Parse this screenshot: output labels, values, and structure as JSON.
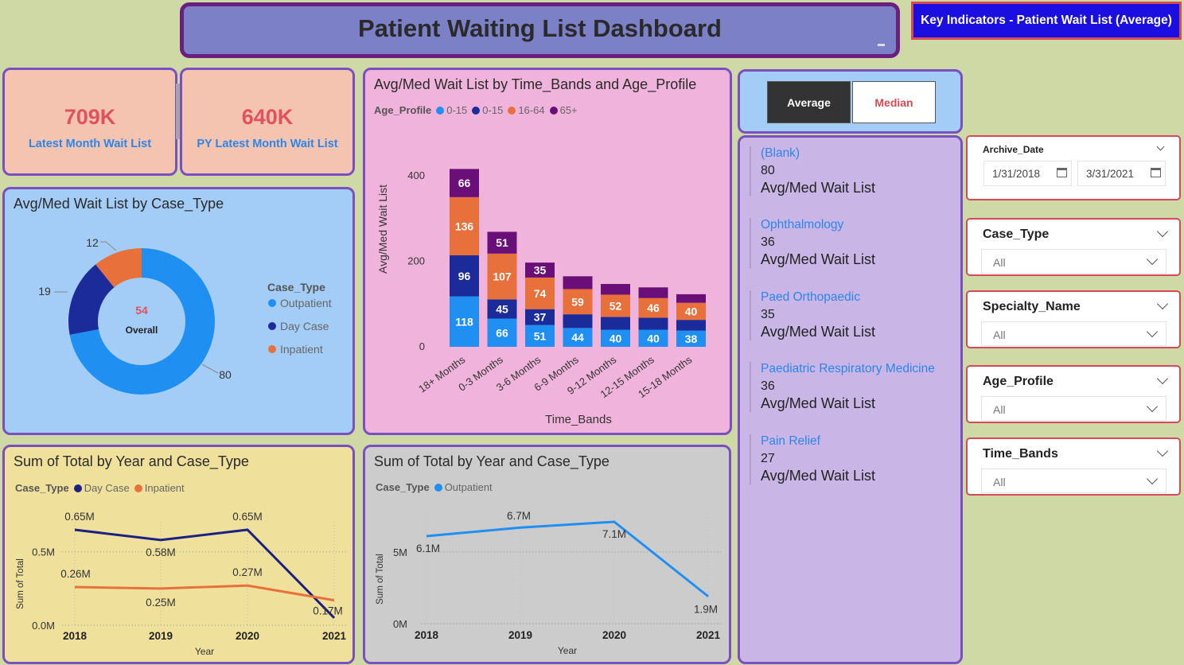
{
  "header": {
    "title": "Patient Waiting List Dashboard",
    "key_indicators": "Key Indicators - Patient Wait List (Average)"
  },
  "kpis": [
    {
      "value": "709K",
      "label": "Latest Month Wait List"
    },
    {
      "value": "640K",
      "label": "PY Latest Month Wait List"
    }
  ],
  "toggle": {
    "average": "Average",
    "median": "Median",
    "selected": "Average"
  },
  "cards": [
    {
      "name": "(Blank)",
      "value": "80",
      "measure": "Avg/Med Wait List"
    },
    {
      "name": "Ophthalmology",
      "value": "36",
      "measure": "Avg/Med Wait List"
    },
    {
      "name": "Paed Orthopaedic",
      "value": "35",
      "measure": "Avg/Med Wait List"
    },
    {
      "name": "Paediatric Respiratory Medicine",
      "value": "36",
      "measure": "Avg/Med Wait List"
    },
    {
      "name": "Pain Relief",
      "value": "27",
      "measure": "Avg/Med Wait List"
    }
  ],
  "slicers": {
    "archive_date": {
      "title": "Archive_Date",
      "start": "1/31/2018",
      "end": "3/31/2021"
    },
    "case_type": {
      "title": "Case_Type",
      "value": "All"
    },
    "specialty": {
      "title": "Specialty_Name",
      "value": "All"
    },
    "age_profile": {
      "title": "Age_Profile",
      "value": "All"
    },
    "time_bands": {
      "title": "Time_Bands",
      "value": "All"
    }
  },
  "colors": {
    "light_blue": "#1f8ff2",
    "dark_blue": "#1c2b9a",
    "orange": "#e8703a",
    "purple": "#6b0f78",
    "navy_line": "#1c2080"
  },
  "chart_data": [
    {
      "id": "donut",
      "type": "pie",
      "title": "Avg/Med Wait List by Case_Type",
      "legend_title": "Case_Type",
      "center_value": "54",
      "center_label": "Overall",
      "slices": [
        {
          "name": "Outpatient",
          "value": 80,
          "color": "#1f8ff2"
        },
        {
          "name": "Day Case",
          "value": 19,
          "color": "#1c2b9a"
        },
        {
          "name": "Inpatient",
          "value": 12,
          "color": "#e8703a"
        }
      ]
    },
    {
      "id": "stacked",
      "type": "bar",
      "title": "Avg/Med Wait List by Time_Bands and Age_Profile",
      "legend_title": "Age_Profile",
      "xlabel": "Time_Bands",
      "ylabel": "Avg/Med Wait List",
      "ylim": [
        0,
        400
      ],
      "yticks": [
        0,
        200,
        400
      ],
      "categories": [
        "18+ Months",
        "0-3 Months",
        "3-6 Months",
        "6-9 Months",
        "9-12 Months",
        "12-15 Months",
        "15-18 Months"
      ],
      "series": [
        {
          "name": "0-15",
          "color": "#1f8ff2",
          "values": [
            118,
            66,
            51,
            44,
            40,
            40,
            38
          ]
        },
        {
          "name": "0-15",
          "color": "#1c2b9a",
          "values": [
            96,
            45,
            37,
            32,
            30,
            28,
            25
          ]
        },
        {
          "name": "16-64",
          "color": "#e8703a",
          "values": [
            136,
            107,
            74,
            59,
            52,
            46,
            40
          ]
        },
        {
          "name": "65+",
          "color": "#6b0f78",
          "values": [
            66,
            51,
            35,
            30,
            25,
            25,
            20
          ]
        }
      ],
      "labeled": [
        [
          true,
          true,
          true,
          true,
          true,
          true,
          true
        ],
        [
          true,
          true,
          true,
          false,
          false,
          false,
          false
        ],
        [
          true,
          true,
          true,
          true,
          true,
          true,
          true
        ],
        [
          true,
          true,
          true,
          false,
          false,
          false,
          false
        ]
      ]
    },
    {
      "id": "line1",
      "type": "line",
      "title": "Sum of Total by Year and Case_Type",
      "legend_title": "Case_Type",
      "xlabel": "Year",
      "ylabel": "Sum of Total",
      "x": [
        "2018",
        "2019",
        "2020",
        "2021"
      ],
      "ylim": [
        0,
        0.65
      ],
      "yticks": [
        {
          "v": 0,
          "label": "0.0M"
        },
        {
          "v": 0.5,
          "label": "0.5M"
        }
      ],
      "series": [
        {
          "name": "Day Case",
          "color": "#1c2080",
          "values": [
            0.65,
            0.58,
            0.65,
            0.05
          ],
          "labels": [
            "0.65M",
            "0.58M",
            "0.65M",
            ""
          ]
        },
        {
          "name": "Inpatient",
          "color": "#e8703a",
          "values": [
            0.26,
            0.25,
            0.27,
            0.17
          ],
          "labels": [
            "0.26M",
            "0.25M",
            "0.27M",
            "0.17M"
          ]
        }
      ]
    },
    {
      "id": "line2",
      "type": "line",
      "title": "Sum of Total by Year and Case_Type",
      "legend_title": "Case_Type",
      "xlabel": "Year",
      "ylabel": "Sum of Total",
      "x": [
        "2018",
        "2019",
        "2020",
        "2021"
      ],
      "ylim": [
        0,
        7.1
      ],
      "yticks": [
        {
          "v": 0,
          "label": "0M"
        },
        {
          "v": 5,
          "label": "5M"
        }
      ],
      "series": [
        {
          "name": "Outpatient",
          "color": "#1f8ff2",
          "values": [
            6.1,
            6.7,
            7.1,
            1.9
          ],
          "labels": [
            "6.1M",
            "6.7M",
            "7.1M",
            "1.9M"
          ]
        }
      ]
    }
  ]
}
